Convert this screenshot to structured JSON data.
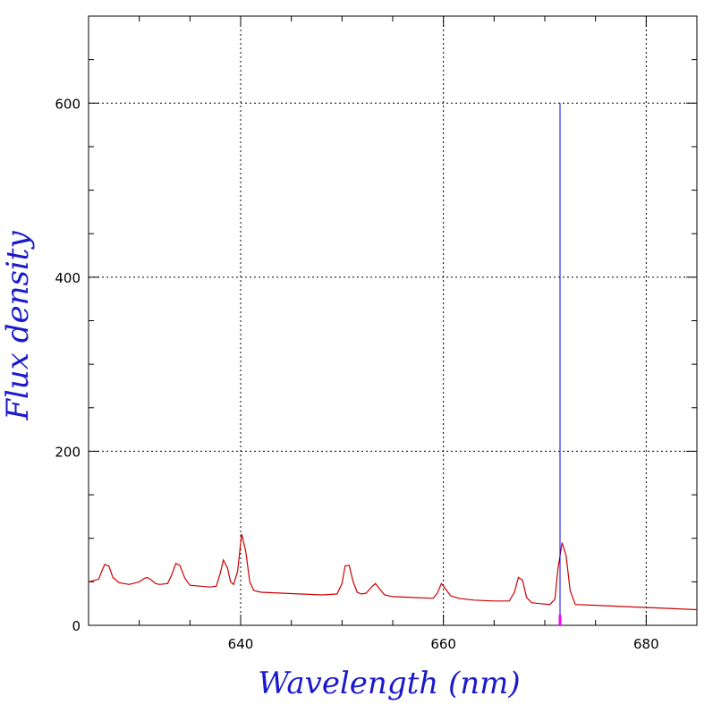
{
  "chart_data": {
    "type": "line",
    "title": "",
    "xlabel": "Wavelength (nm)",
    "ylabel": "Flux density",
    "xlim": [
      625,
      685
    ],
    "ylim": [
      0,
      700
    ],
    "x_ticks": [
      640,
      660,
      680
    ],
    "y_ticks": [
      0,
      200,
      400,
      600
    ],
    "x_tick_labels": [
      "640",
      "660",
      "680"
    ],
    "y_tick_labels": [
      "0",
      "200",
      "400",
      "600"
    ],
    "grid": true,
    "legend": "none",
    "colors": {
      "spectrum": "#cc0000",
      "marker_line": "#0000ff",
      "marker_base": "#ff00ff",
      "axis_title": "#1a1acc"
    },
    "series": [
      {
        "x": [
          625.0,
          626.0,
          626.3,
          626.6,
          627.0,
          627.4,
          628.0,
          629.0,
          630.0,
          630.5,
          630.8,
          631.2,
          631.6,
          632.0,
          632.8,
          633.2,
          633.6,
          634.0,
          634.5,
          635.0,
          636.0,
          637.0,
          637.6,
          638.0,
          638.3,
          638.7,
          639.0,
          639.3,
          639.7,
          640.1,
          640.5,
          640.9,
          641.3,
          642.0,
          644.0,
          646.0,
          648.0,
          649.5,
          650.0,
          650.3,
          650.7,
          651.1,
          651.5,
          651.9,
          652.4,
          652.9,
          653.3,
          653.7,
          654.2,
          655.0,
          657.0,
          659.0,
          659.4,
          659.8,
          660.2,
          660.7,
          661.5,
          663.0,
          665.0,
          666.5,
          667.0,
          667.4,
          667.8,
          668.2,
          668.7,
          669.5,
          670.5,
          671.0,
          671.3,
          671.7,
          672.1,
          672.5,
          673.0,
          675.0,
          677.0,
          679.0,
          681.0,
          683.0,
          685.0
        ],
        "y": [
          50,
          53,
          62,
          70,
          68,
          55,
          49,
          47,
          50,
          54,
          55,
          52,
          48,
          47,
          48,
          58,
          71,
          69,
          54,
          46,
          45,
          44,
          45,
          60,
          75,
          66,
          50,
          47,
          62,
          105,
          85,
          50,
          40,
          38,
          37,
          36,
          35,
          36,
          48,
          68,
          69,
          50,
          38,
          36,
          37,
          44,
          48,
          42,
          35,
          33,
          32,
          31,
          37,
          48,
          42,
          34,
          31,
          29,
          28,
          28,
          38,
          55,
          52,
          32,
          26,
          25,
          24,
          30,
          65,
          95,
          80,
          40,
          24,
          23,
          22,
          21,
          20,
          19,
          18
        ]
      }
    ],
    "marker_x": 671.5,
    "marker_ymax": 600
  }
}
